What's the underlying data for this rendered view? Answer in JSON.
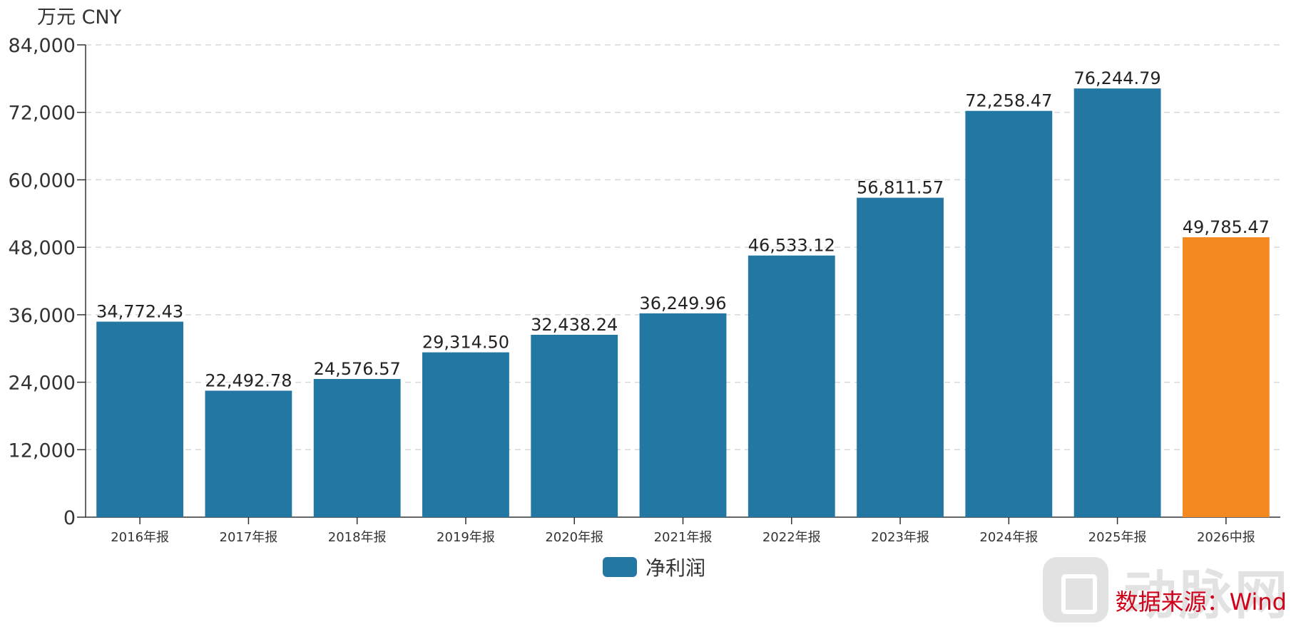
{
  "chart_data": {
    "type": "bar",
    "unit_label": "万元  CNY",
    "categories": [
      "2016年报",
      "2017年报",
      "2018年报",
      "2019年报",
      "2020年报",
      "2021年报",
      "2022年报",
      "2023年报",
      "2024年报",
      "2025年报",
      "2026中报"
    ],
    "value_labels": [
      "34,772.43",
      "22,492.78",
      "24,576.57",
      "29,314.50",
      "32,438.24",
      "36,249.96",
      "46,533.12",
      "56,811.57",
      "72,258.47",
      "76,244.79",
      "49,785.47"
    ],
    "series": [
      {
        "name": "净利润",
        "values": [
          34772.43,
          22492.78,
          24576.57,
          29314.5,
          32438.24,
          36249.96,
          46533.12,
          56811.57,
          72258.47,
          76244.79,
          49785.47
        ]
      }
    ],
    "bar_colors": [
      "#2277a3",
      "#2277a3",
      "#2277a3",
      "#2277a3",
      "#2277a3",
      "#2277a3",
      "#2277a3",
      "#2277a3",
      "#2277a3",
      "#2277a3",
      "#f4891f"
    ],
    "ylim": [
      0,
      84000
    ],
    "yticks": [
      0,
      12000,
      24000,
      36000,
      48000,
      60000,
      72000,
      84000
    ],
    "ytick_labels": [
      "0",
      "12,000",
      "24,000",
      "36,000",
      "48,000",
      "60,000",
      "72,000",
      "84,000"
    ],
    "grid": true,
    "legend_position": "bottom-center",
    "legend_color": "#2277a3"
  },
  "source_text": "数据来源：Wind",
  "watermark_text": "动脉网"
}
